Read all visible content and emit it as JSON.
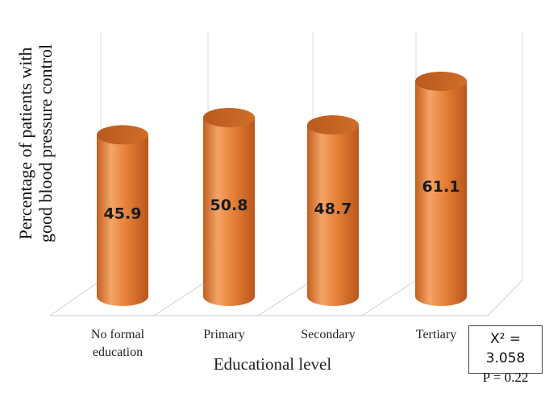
{
  "chart_data": {
    "type": "bar",
    "title": "",
    "categories": [
      "No formal education",
      "Primary",
      "Secondary",
      "Tertiary"
    ],
    "category_lines": [
      [
        "No formal",
        "education"
      ],
      [
        "Primary"
      ],
      [
        "Secondary"
      ],
      [
        "Tertiary"
      ]
    ],
    "values": [
      45.9,
      50.8,
      48.7,
      61.1
    ],
    "value_labels": [
      "45.9",
      "50.8",
      "48.7",
      "61.1"
    ],
    "xlabel": "Educational level",
    "ylabel_lines": [
      "Percentage of patients with",
      "good blood pressure control"
    ],
    "ylim": [
      0,
      70
    ],
    "bar_style": "3d-cylinder",
    "bar_color": "#E8833A",
    "grid": true,
    "annotation": {
      "chi_label": "X² = 3.058",
      "p_label": "P = 0.22"
    }
  }
}
